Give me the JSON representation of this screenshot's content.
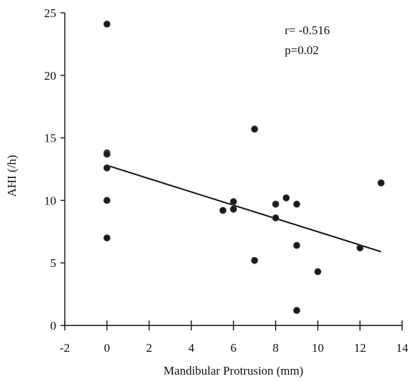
{
  "chart_data": {
    "type": "scatter",
    "xlabel": "Mandibular Protrusion (mm)",
    "ylabel": "AHI (/h)",
    "xlim": [
      -2,
      14
    ],
    "ylim": [
      0,
      25
    ],
    "x_ticks": [
      "-2",
      "0",
      "2",
      "4",
      "6",
      "8",
      "10",
      "12",
      "14"
    ],
    "y_ticks": [
      "0",
      "5",
      "10",
      "15",
      "20",
      "25"
    ],
    "grid": false,
    "annotations": [
      "r= -0.516",
      "p=0.02"
    ],
    "points": [
      {
        "x": 0,
        "y": 24.1
      },
      {
        "x": 0,
        "y": 13.8
      },
      {
        "x": 0,
        "y": 13.7
      },
      {
        "x": 0,
        "y": 12.6
      },
      {
        "x": 0,
        "y": 10.0
      },
      {
        "x": 0,
        "y": 7.0
      },
      {
        "x": 5.5,
        "y": 9.2
      },
      {
        "x": 6.0,
        "y": 9.9
      },
      {
        "x": 6.0,
        "y": 9.3
      },
      {
        "x": 7.0,
        "y": 15.7
      },
      {
        "x": 7.0,
        "y": 5.2
      },
      {
        "x": 8.0,
        "y": 9.7
      },
      {
        "x": 8.0,
        "y": 8.6
      },
      {
        "x": 8.5,
        "y": 10.2
      },
      {
        "x": 9.0,
        "y": 9.7
      },
      {
        "x": 9.0,
        "y": 6.4
      },
      {
        "x": 9.0,
        "y": 1.2
      },
      {
        "x": 10.0,
        "y": 4.3
      },
      {
        "x": 12.0,
        "y": 6.2
      },
      {
        "x": 13.0,
        "y": 11.4
      }
    ],
    "regression_line": {
      "x": [
        0,
        13
      ],
      "y": [
        12.8,
        5.9
      ]
    }
  }
}
